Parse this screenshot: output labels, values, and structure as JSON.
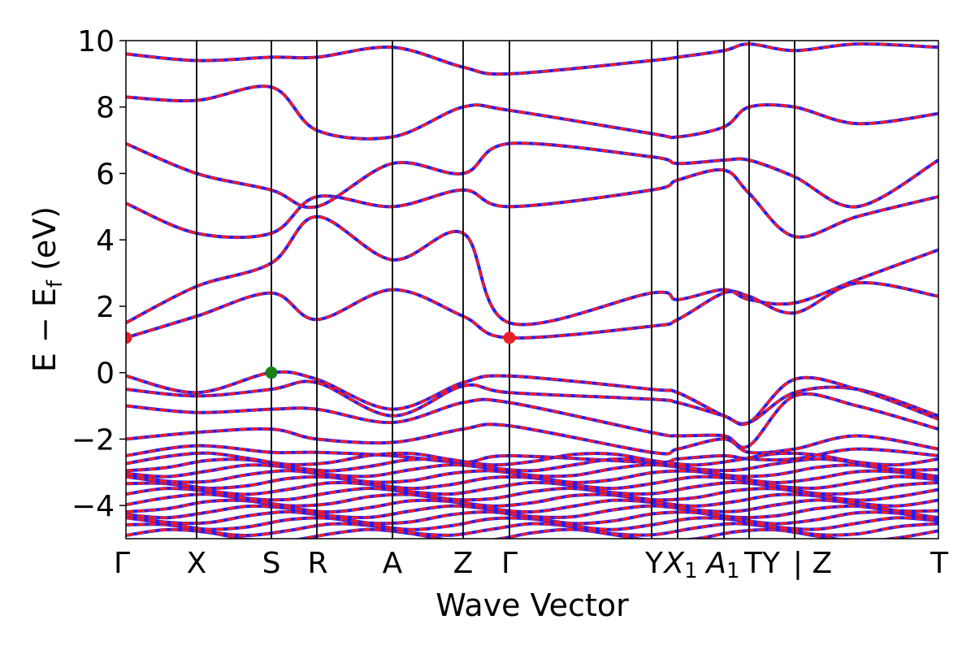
{
  "chart_data": {
    "type": "line",
    "title": "",
    "xlabel": "Wave Vector",
    "ylabel": "E − E_f (eV)",
    "ylabel_parts": {
      "main": "E − E",
      "sub": "f",
      "unit": " (eV)"
    },
    "ylim": [
      -5,
      10
    ],
    "yticks": [
      10,
      8,
      6,
      4,
      2,
      0,
      -2,
      -4
    ],
    "ytick_labels": [
      "10",
      "8",
      "6",
      "4",
      "2",
      "0",
      "−2",
      "−4"
    ],
    "xlim": [
      0,
      1
    ],
    "kpoints": [
      {
        "label": "Γ",
        "x": 0.0
      },
      {
        "label": "X",
        "x": 0.087
      },
      {
        "label": "S",
        "x": 0.179
      },
      {
        "label": "R",
        "x": 0.235
      },
      {
        "label": "A",
        "x": 0.328
      },
      {
        "label": "Z",
        "x": 0.415
      },
      {
        "label": "Γ",
        "x": 0.472
      },
      {
        "label": "Y",
        "x": 0.647
      },
      {
        "label": "X1",
        "x": 0.679,
        "sub": "1",
        "main": "X"
      },
      {
        "label": "A1",
        "x": 0.736,
        "sub": "1",
        "main": "A"
      },
      {
        "label": "T",
        "x": 0.767
      },
      {
        "label": "Y | Z",
        "x": 0.823
      },
      {
        "label": "T",
        "x": 1.0
      }
    ],
    "kpoint_label_text": [
      "Γ",
      "X",
      "S",
      "R",
      "A",
      "Z",
      "Γ",
      "Y",
      "X1",
      "A1",
      "TY",
      "| Z",
      "T"
    ],
    "markers": [
      {
        "name": "cbm",
        "x": 0.0,
        "y": 1.05,
        "color": "#e8202a"
      },
      {
        "name": "cbm",
        "x": 0.472,
        "y": 1.05,
        "color": "#e8202a"
      },
      {
        "name": "vbm",
        "x": 0.179,
        "y": 0.0,
        "color": "#1a7f1a"
      }
    ],
    "band_colors": {
      "primary": "#ff1a1a",
      "secondary": "#1f1fff"
    },
    "bands_valence": [
      {
        "x": [
          0,
          0.087,
          0.179,
          0.235,
          0.328,
          0.415,
          0.472,
          0.647,
          0.679,
          0.736,
          0.767,
          0.823,
          0.9,
          1.0
        ],
        "y": [
          -0.1,
          -0.6,
          0.0,
          -0.2,
          -1.1,
          -0.3,
          -0.1,
          -0.5,
          -0.6,
          -1.3,
          -1.5,
          -0.6,
          -0.5,
          -1.3
        ]
      },
      {
        "x": [
          0,
          0.087,
          0.179,
          0.235,
          0.328,
          0.415,
          0.472,
          0.647,
          0.679,
          0.736,
          0.767,
          0.823,
          0.9,
          1.0
        ],
        "y": [
          -0.5,
          -0.7,
          -0.5,
          -0.3,
          -1.3,
          -0.4,
          -0.6,
          -0.8,
          -0.9,
          -1.3,
          -1.5,
          -0.2,
          -0.5,
          -1.4
        ]
      },
      {
        "x": [
          0,
          0.087,
          0.179,
          0.235,
          0.328,
          0.415,
          0.472,
          0.647,
          0.679,
          0.736,
          0.767,
          0.823,
          0.9,
          1.0
        ],
        "y": [
          -1.0,
          -1.2,
          -1.1,
          -1.1,
          -1.5,
          -0.9,
          -0.9,
          -1.8,
          -1.9,
          -1.9,
          -2.2,
          -0.7,
          -1.0,
          -1.7
        ]
      },
      {
        "x": [
          0,
          0.087,
          0.179,
          0.235,
          0.328,
          0.415,
          0.472,
          0.647,
          0.679,
          0.736,
          0.767,
          0.823,
          0.9,
          1.0
        ],
        "y": [
          -2.0,
          -1.8,
          -1.7,
          -2.0,
          -2.1,
          -1.7,
          -1.6,
          -2.4,
          -2.3,
          -2.0,
          -2.4,
          -2.3,
          -1.9,
          -2.3
        ]
      },
      {
        "x": [
          0,
          0.087,
          0.179,
          0.235,
          0.328,
          0.415,
          0.472,
          0.647,
          0.679,
          0.736,
          0.767,
          0.823,
          0.9,
          1.0
        ],
        "y": [
          -2.5,
          -2.2,
          -2.4,
          -2.4,
          -2.5,
          -2.7,
          -2.5,
          -2.7,
          -2.6,
          -2.5,
          -2.6,
          -2.6,
          -2.3,
          -2.5
        ]
      }
    ],
    "bands_conduction": [
      {
        "x": [
          0,
          0.087,
          0.179,
          0.235,
          0.328,
          0.415,
          0.472,
          0.647,
          0.679,
          0.736,
          0.767,
          0.823,
          0.9,
          1.0
        ],
        "y": [
          1.05,
          1.7,
          2.4,
          1.6,
          2.5,
          1.7,
          1.05,
          1.4,
          1.6,
          2.4,
          2.3,
          1.8,
          2.7,
          2.3
        ]
      },
      {
        "x": [
          0,
          0.087,
          0.179,
          0.235,
          0.328,
          0.415,
          0.472,
          0.647,
          0.679,
          0.736,
          0.767,
          0.823,
          0.9,
          1.0
        ],
        "y": [
          1.5,
          2.6,
          3.3,
          4.7,
          3.4,
          4.2,
          1.5,
          2.4,
          2.2,
          2.5,
          2.2,
          2.1,
          2.8,
          3.7
        ]
      },
      {
        "x": [
          0,
          0.087,
          0.179,
          0.235,
          0.328,
          0.415,
          0.472,
          0.647,
          0.679,
          0.736,
          0.767,
          0.823,
          0.9,
          1.0
        ],
        "y": [
          5.1,
          4.2,
          4.2,
          5.3,
          5.0,
          5.5,
          5.0,
          5.5,
          5.8,
          6.1,
          5.4,
          4.1,
          4.7,
          5.3
        ]
      },
      {
        "x": [
          0,
          0.087,
          0.179,
          0.235,
          0.328,
          0.415,
          0.472,
          0.647,
          0.679,
          0.736,
          0.767,
          0.823,
          0.9,
          1.0
        ],
        "y": [
          6.9,
          6.0,
          5.5,
          5.0,
          6.3,
          6.0,
          6.9,
          6.5,
          6.3,
          6.4,
          6.4,
          5.9,
          5.0,
          6.4
        ]
      },
      {
        "x": [
          0,
          0.087,
          0.179,
          0.235,
          0.328,
          0.415,
          0.472,
          0.647,
          0.679,
          0.736,
          0.767,
          0.823,
          0.9,
          1.0
        ],
        "y": [
          8.3,
          8.2,
          8.6,
          7.3,
          7.1,
          8.0,
          7.9,
          7.2,
          7.1,
          7.4,
          8.0,
          8.0,
          7.5,
          7.8
        ]
      },
      {
        "x": [
          0,
          0.087,
          0.179,
          0.235,
          0.328,
          0.415,
          0.472,
          0.647,
          0.679,
          0.736,
          0.767,
          0.823,
          0.9,
          1.0
        ],
        "y": [
          9.6,
          9.4,
          9.5,
          9.5,
          9.8,
          9.2,
          9.0,
          9.4,
          9.5,
          9.7,
          9.9,
          9.7,
          9.9,
          9.8
        ]
      }
    ],
    "core_band_range": [
      -4.9,
      -2.6
    ]
  }
}
